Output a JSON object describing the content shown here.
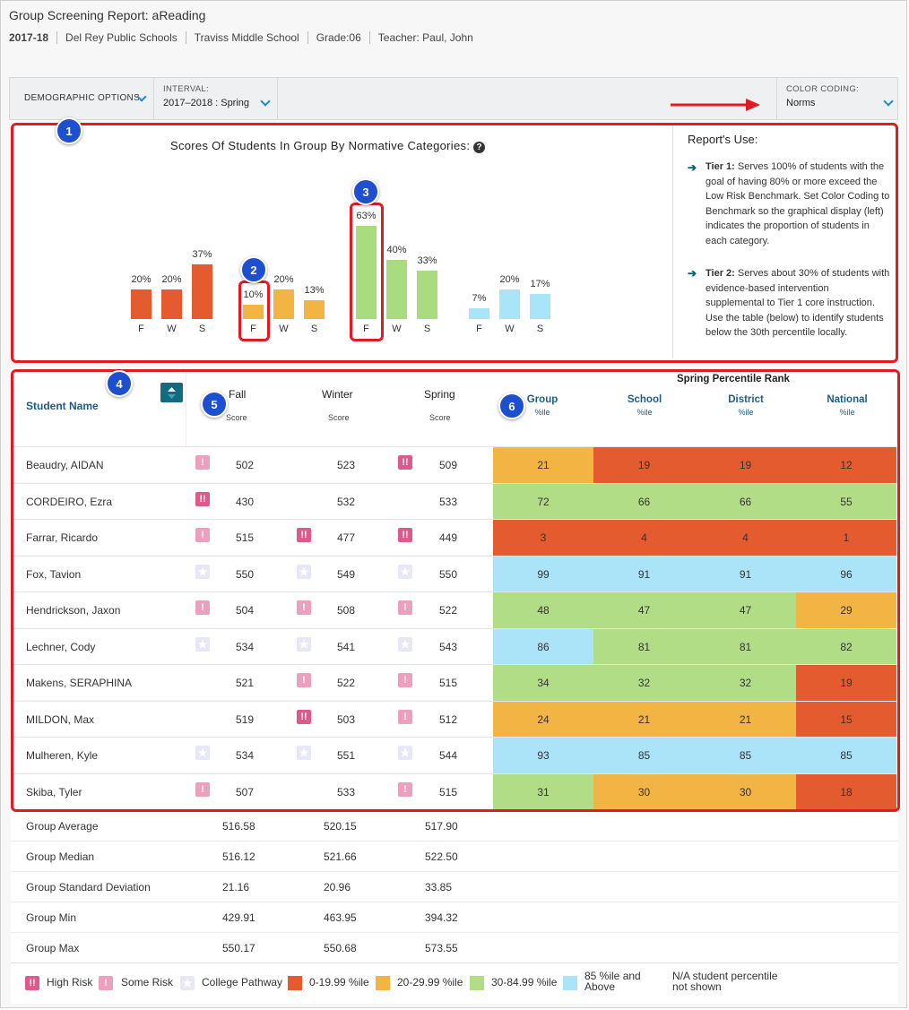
{
  "header": {
    "title": "Group Screening Report: aReading",
    "year": "2017-18",
    "district": "Del Rey Public Schools",
    "school": "Traviss Middle School",
    "grade": "Grade:06",
    "teacher": "Teacher: Paul, John"
  },
  "toolbar": {
    "demographic_label": "DEMOGRAPHIC OPTIONS",
    "interval_label": "INTERVAL:",
    "interval_value": "2017–2018 : Spring",
    "color_label": "COLOR CODING:",
    "color_value": "Norms"
  },
  "badges": [
    "1",
    "2",
    "3",
    "4",
    "5",
    "6"
  ],
  "chart_data": {
    "type": "bar",
    "title": "Scores Of Students In Group By Normative Categories:",
    "groups": [
      {
        "color": "#e35b2e",
        "bars": [
          {
            "x": "F",
            "value": 20,
            "label": "20%"
          },
          {
            "x": "W",
            "value": 20,
            "label": "20%"
          },
          {
            "x": "S",
            "value": 37,
            "label": "37%"
          }
        ]
      },
      {
        "color": "#f2b443",
        "bars": [
          {
            "x": "F",
            "value": 10,
            "label": "10%"
          },
          {
            "x": "W",
            "value": 20,
            "label": "20%"
          },
          {
            "x": "S",
            "value": 13,
            "label": "13%"
          }
        ]
      },
      {
        "color": "#a9dc7f",
        "bars": [
          {
            "x": "F",
            "value": 63,
            "label": "63%"
          },
          {
            "x": "W",
            "value": 40,
            "label": "40%"
          },
          {
            "x": "S",
            "value": 33,
            "label": "33%"
          }
        ]
      },
      {
        "color": "#a9e5f8",
        "bars": [
          {
            "x": "F",
            "value": 7,
            "label": "7%"
          },
          {
            "x": "W",
            "value": 20,
            "label": "20%"
          },
          {
            "x": "S",
            "value": 17,
            "label": "17%"
          }
        ]
      }
    ]
  },
  "reports_use": {
    "heading": "Report's Use:",
    "tier1_bold": "Tier 1:",
    "tier1_text": "Serves 100% of students with the goal of having 80% or more exceed the Low Risk Benchmark. Set Color Coding to Benchmark so the graphical display (left) indicates the proportion of students in each category.",
    "tier2_bold": "Tier 2:",
    "tier2_text": "Serves about 30% of students with evidence-based intervention supplemental to Tier 1 core instruction. Use the table (below) to identify students below the 30th percentile locally."
  },
  "table": {
    "student_name_header": "Student Name",
    "fall": "Fall",
    "winter": "Winter",
    "spring": "Spring",
    "score": "Score",
    "spring_percentile_rank": "Spring Percentile Rank",
    "group": "Group",
    "school": "School",
    "district": "District",
    "national": "National",
    "ile": "%ile",
    "rows": [
      {
        "name": "Beaudry, AIDAN",
        "fall_icon": "some",
        "fall": "502",
        "winter_icon": "",
        "winter": "523",
        "spring_icon": "high",
        "spring": "509",
        "pct": [
          {
            "v": "21",
            "c": "#f2b443"
          },
          {
            "v": "19",
            "c": "#e35b2e"
          },
          {
            "v": "19",
            "c": "#e35b2e"
          },
          {
            "v": "12",
            "c": "#e35b2e"
          }
        ]
      },
      {
        "name": "CORDEIRO, Ezra",
        "fall_icon": "high",
        "fall": "430",
        "winter_icon": "",
        "winter": "532",
        "spring_icon": "",
        "spring": "533",
        "pct": [
          {
            "v": "72",
            "c": "#b1dd86"
          },
          {
            "v": "66",
            "c": "#b1dd86"
          },
          {
            "v": "66",
            "c": "#b1dd86"
          },
          {
            "v": "55",
            "c": "#b1dd86"
          }
        ]
      },
      {
        "name": "Farrar, Ricardo",
        "fall_icon": "some",
        "fall": "515",
        "winter_icon": "high",
        "winter": "477",
        "spring_icon": "high",
        "spring": "449",
        "pct": [
          {
            "v": "3",
            "c": "#e35b2e"
          },
          {
            "v": "4",
            "c": "#e35b2e"
          },
          {
            "v": "4",
            "c": "#e35b2e"
          },
          {
            "v": "1",
            "c": "#e35b2e"
          }
        ]
      },
      {
        "name": "Fox, Tavion",
        "fall_icon": "coll",
        "fall": "550",
        "winter_icon": "coll",
        "winter": "549",
        "spring_icon": "coll",
        "spring": "550",
        "pct": [
          {
            "v": "99",
            "c": "#abe4f9"
          },
          {
            "v": "91",
            "c": "#abe4f9"
          },
          {
            "v": "91",
            "c": "#abe4f9"
          },
          {
            "v": "96",
            "c": "#abe4f9"
          }
        ]
      },
      {
        "name": "Hendrickson, Jaxon",
        "fall_icon": "some",
        "fall": "504",
        "winter_icon": "some",
        "winter": "508",
        "spring_icon": "some",
        "spring": "522",
        "pct": [
          {
            "v": "48",
            "c": "#b1dd86"
          },
          {
            "v": "47",
            "c": "#b1dd86"
          },
          {
            "v": "47",
            "c": "#b1dd86"
          },
          {
            "v": "29",
            "c": "#f2b443"
          }
        ]
      },
      {
        "name": "Lechner, Cody",
        "fall_icon": "coll",
        "fall": "534",
        "winter_icon": "coll",
        "winter": "541",
        "spring_icon": "coll",
        "spring": "543",
        "pct": [
          {
            "v": "86",
            "c": "#abe4f9"
          },
          {
            "v": "81",
            "c": "#b1dd86"
          },
          {
            "v": "81",
            "c": "#b1dd86"
          },
          {
            "v": "82",
            "c": "#b1dd86"
          }
        ]
      },
      {
        "name": "Makens, SERAPHINA",
        "fall_icon": "",
        "fall": "521",
        "winter_icon": "some",
        "winter": "522",
        "spring_icon": "some",
        "spring": "515",
        "pct": [
          {
            "v": "34",
            "c": "#b1dd86"
          },
          {
            "v": "32",
            "c": "#b1dd86"
          },
          {
            "v": "32",
            "c": "#b1dd86"
          },
          {
            "v": "19",
            "c": "#e35b2e"
          }
        ]
      },
      {
        "name": "MILDON, Max",
        "fall_icon": "",
        "fall": "519",
        "winter_icon": "high",
        "winter": "503",
        "spring_icon": "some",
        "spring": "512",
        "pct": [
          {
            "v": "24",
            "c": "#f2b443"
          },
          {
            "v": "21",
            "c": "#f2b443"
          },
          {
            "v": "21",
            "c": "#f2b443"
          },
          {
            "v": "15",
            "c": "#e35b2e"
          }
        ]
      },
      {
        "name": "Mulheren, Kyle",
        "fall_icon": "coll",
        "fall": "534",
        "winter_icon": "coll",
        "winter": "551",
        "spring_icon": "coll",
        "spring": "544",
        "pct": [
          {
            "v": "93",
            "c": "#abe4f9"
          },
          {
            "v": "85",
            "c": "#abe4f9"
          },
          {
            "v": "85",
            "c": "#abe4f9"
          },
          {
            "v": "85",
            "c": "#abe4f9"
          }
        ]
      },
      {
        "name": "Skiba, Tyler",
        "fall_icon": "some",
        "fall": "507",
        "winter_icon": "",
        "winter": "533",
        "spring_icon": "some",
        "spring": "515",
        "pct": [
          {
            "v": "31",
            "c": "#b1dd86"
          },
          {
            "v": "30",
            "c": "#f2b443"
          },
          {
            "v": "30",
            "c": "#f2b443"
          },
          {
            "v": "18",
            "c": "#e35b2e"
          }
        ]
      }
    ],
    "stats": [
      {
        "label": "Group Average",
        "fall": "516.58",
        "winter": "520.15",
        "spring": "517.90"
      },
      {
        "label": "Group Median",
        "fall": "516.12",
        "winter": "521.66",
        "spring": "522.50"
      },
      {
        "label": "Group Standard Deviation",
        "fall": "21.16",
        "winter": "20.96",
        "spring": "33.85"
      },
      {
        "label": "Group Min",
        "fall": "429.91",
        "winter": "463.95",
        "spring": "394.32"
      },
      {
        "label": "Group Max",
        "fall": "550.17",
        "winter": "550.68",
        "spring": "573.55"
      }
    ]
  },
  "legend": {
    "high_risk": "High Risk",
    "some_risk": "Some Risk",
    "college_pathway": "College Pathway",
    "band1": "0-19.99 %ile",
    "band2": "20-29.99 %ile",
    "band3": "30-84.99 %ile",
    "band4_line1": "85 %ile and",
    "band4_line2": "Above",
    "na_line1": "N/A student percentile",
    "na_line2": "not shown",
    "colors": {
      "band1": "#e35b2e",
      "band2": "#f2b443",
      "band3": "#b1dd86",
      "band4": "#abe4f9"
    }
  }
}
